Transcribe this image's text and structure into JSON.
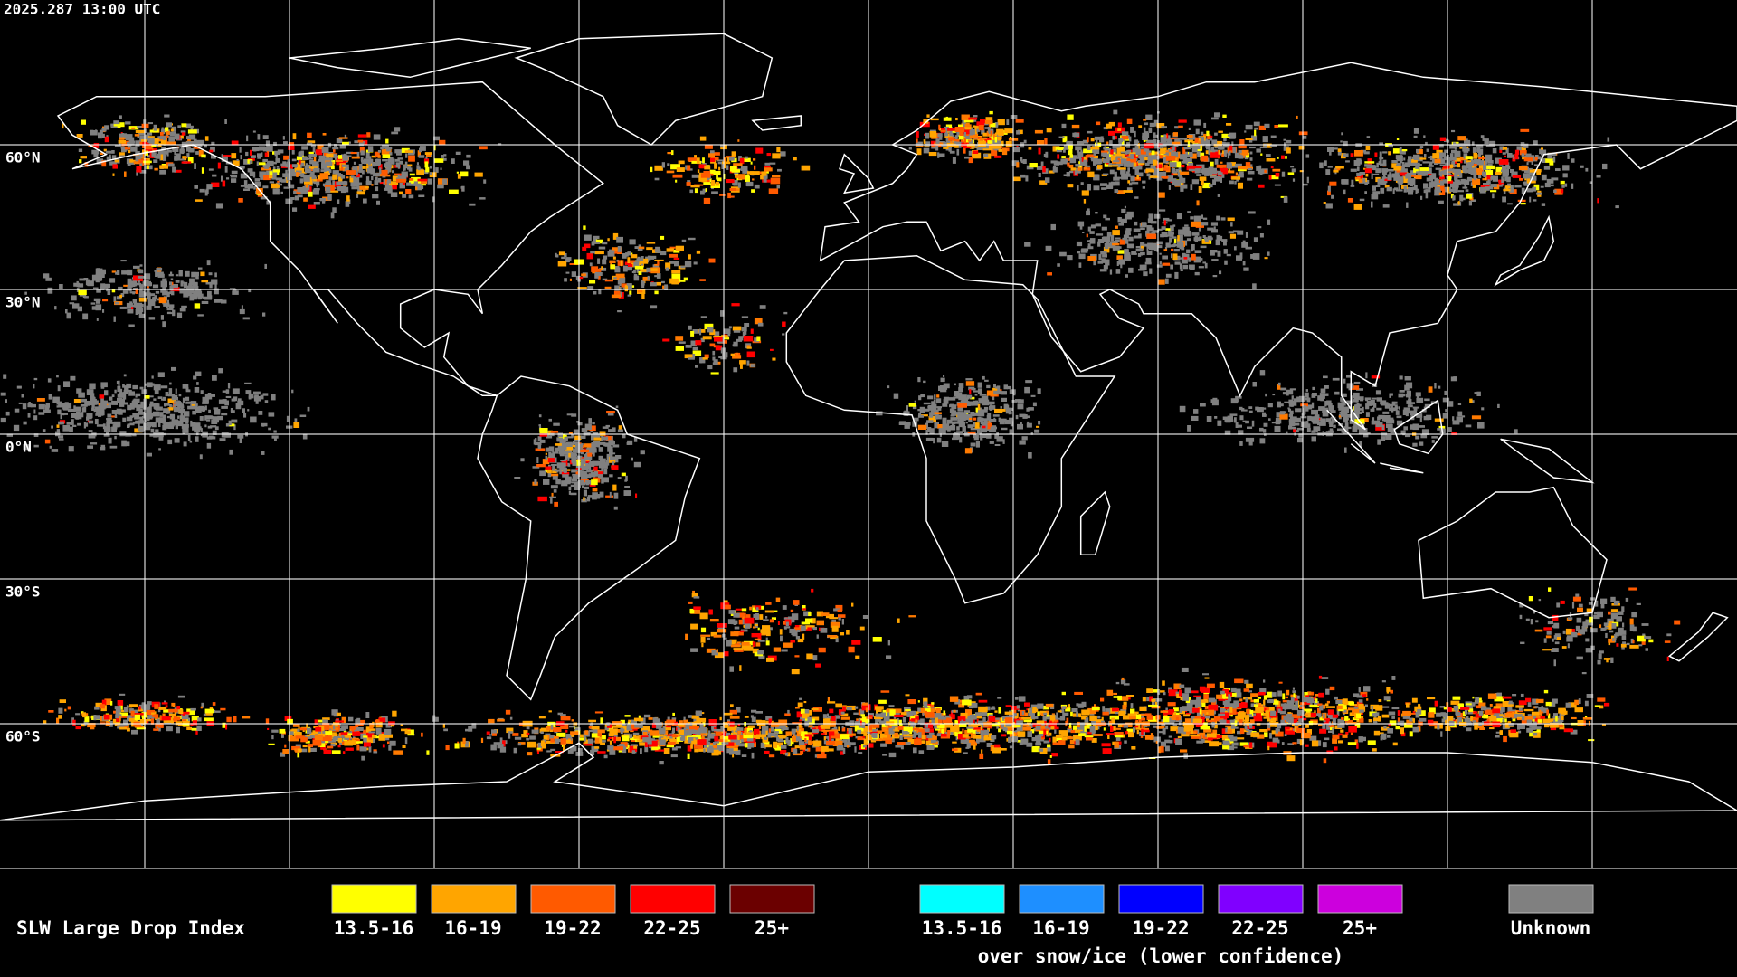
{
  "timestamp": "2025.287 13:00 UTC",
  "lat_labels": [
    "60°N",
    "30°N",
    "0°N",
    "30°S",
    "60°S"
  ],
  "legend": {
    "title": "SLW Large Drop Index",
    "groups": [
      {
        "entries": [
          {
            "label": "13.5-16",
            "color": "#ffff00"
          },
          {
            "label": "16-19",
            "color": "#ffa500"
          },
          {
            "label": "19-22",
            "color": "#ff5a00"
          },
          {
            "label": "22-25",
            "color": "#ff0000"
          },
          {
            "label": "25+",
            "color": "#6b0000"
          }
        ]
      },
      {
        "entries": [
          {
            "label": "13.5-16",
            "color": "#00ffff"
          },
          {
            "label": "16-19",
            "color": "#1e8fff"
          },
          {
            "label": "19-22",
            "color": "#0000ff"
          },
          {
            "label": "22-25",
            "color": "#8000ff"
          },
          {
            "label": "25+",
            "color": "#cc00dd"
          }
        ],
        "note": "over snow/ice (lower confidence)"
      },
      {
        "entries": [
          {
            "label": "Unknown",
            "color": "#808080"
          }
        ]
      }
    ]
  }
}
